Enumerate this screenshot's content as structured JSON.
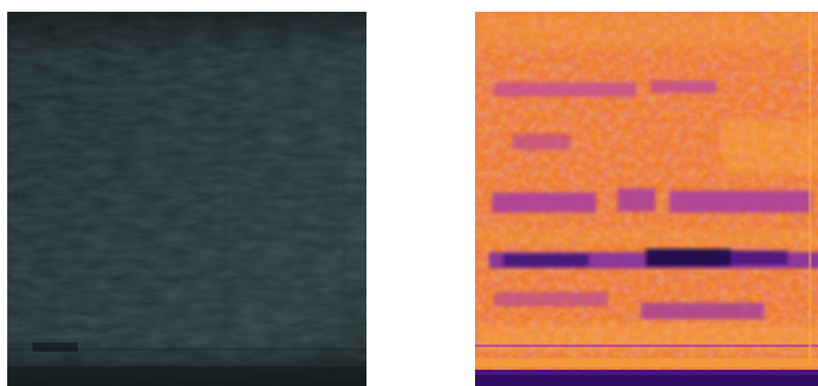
{
  "images": [
    {
      "name": "grayscale-textured-input-image",
      "palette": [
        "#1b262a",
        "#243337",
        "#2c3c40",
        "#13191c"
      ]
    },
    {
      "name": "inferno-colormap-heatmap-image",
      "palette": [
        "#f07a2a",
        "#f5a33a",
        "#d8589a",
        "#9a3bb0",
        "#3a0f70",
        "#160a3e"
      ]
    }
  ]
}
